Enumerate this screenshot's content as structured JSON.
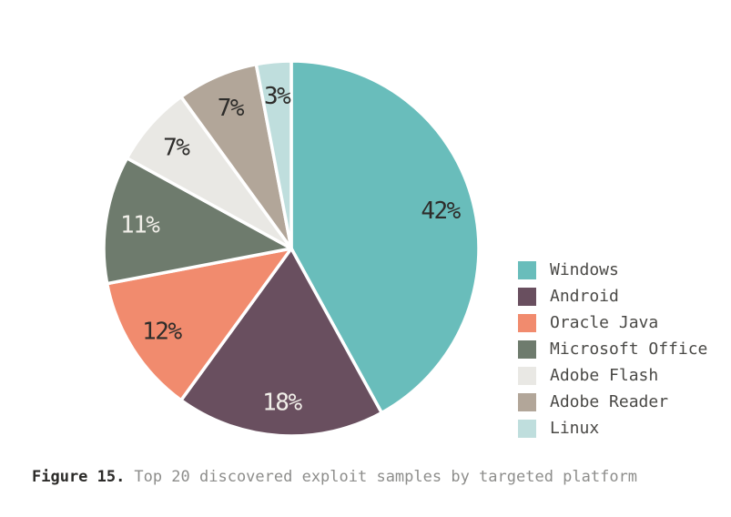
{
  "figure": {
    "caption_prefix": "Figure 15.",
    "caption_text": "Top 20 discovered exploit samples by targeted platform"
  },
  "chart_data": {
    "type": "pie",
    "title": "Top 20 discovered exploit samples by targeted platform",
    "start_angle_deg": 0,
    "direction": "clockwise",
    "legend_position": "right",
    "total_percent": 100,
    "slices": [
      {
        "label": "Windows",
        "value": 42,
        "display": "42%",
        "color": "#69bdbb",
        "label_color": "#2e2d2b"
      },
      {
        "label": "Android",
        "value": 18,
        "display": "18%",
        "color": "#694f5f",
        "label_color": "#f1efe9"
      },
      {
        "label": "Oracle Java",
        "value": 12,
        "display": "12%",
        "color": "#f18b6e",
        "label_color": "#2e2d2b"
      },
      {
        "label": "Microsoft Office",
        "value": 11,
        "display": "11%",
        "color": "#6e7b6d",
        "label_color": "#f1efe9"
      },
      {
        "label": "Adobe Flash",
        "value": 7,
        "display": "7%",
        "color": "#e9e8e4",
        "label_color": "#2e2d2b"
      },
      {
        "label": "Adobe Reader",
        "value": 7,
        "display": "7%",
        "color": "#b2a699",
        "label_color": "#2e2d2b"
      },
      {
        "label": "Linux",
        "value": 3,
        "display": "3%",
        "color": "#bfdedd",
        "label_color": "#2e2d2b"
      }
    ]
  }
}
